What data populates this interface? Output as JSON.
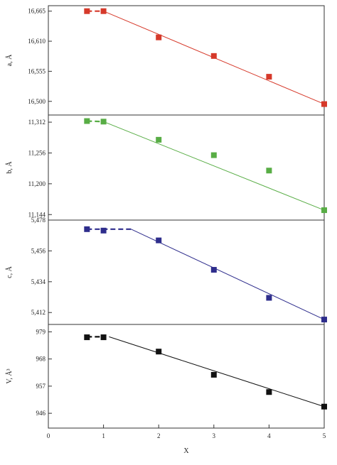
{
  "chart_data": {
    "type": "line",
    "xlabel": "X",
    "xlim": [
      0,
      5
    ],
    "x_ticks": [
      0,
      1,
      2,
      3,
      4,
      5
    ],
    "x_tick_labels": [
      "0",
      "1",
      "2",
      "3",
      "4",
      "5"
    ],
    "grid": false,
    "legend": "none",
    "panels": [
      {
        "ylabel": "a, Å",
        "color": "#d6392a",
        "ylim": [
          16.475,
          16.675
        ],
        "y_ticks": [
          16.5,
          16.555,
          16.61,
          16.665
        ],
        "y_tick_labels": [
          "16,500",
          "16,555",
          "16,610",
          "16,665"
        ],
        "x": [
          0.7,
          1,
          2,
          3,
          4,
          5
        ],
        "y": [
          16.665,
          16.665,
          16.617,
          16.583,
          16.545,
          16.495
        ],
        "fit_line": {
          "from": [
            1,
            16.665
          ],
          "to": [
            5,
            16.495
          ]
        },
        "dashed_segment": {
          "from": [
            0.7,
            16.665
          ],
          "to": [
            1,
            16.665
          ]
        }
      },
      {
        "ylabel": "b, Å",
        "color": "#58ad45",
        "ylim": [
          11.134,
          11.325
        ],
        "y_ticks": [
          11.144,
          11.2,
          11.256,
          11.312
        ],
        "y_tick_labels": [
          "11,144",
          "11,200",
          "11,256",
          "11,312"
        ],
        "x": [
          0.7,
          1,
          2,
          3,
          4,
          5
        ],
        "y": [
          11.314,
          11.313,
          11.28,
          11.252,
          11.224,
          11.152
        ],
        "fit_line": {
          "from": [
            1,
            11.313
          ],
          "to": [
            5,
            11.152
          ]
        },
        "dashed_segment": {
          "from": [
            0.7,
            11.314
          ],
          "to": [
            1,
            11.313
          ]
        }
      },
      {
        "ylabel": "c, Å",
        "color": "#2e2d8c",
        "ylim": [
          5.4035,
          5.478
        ],
        "y_ticks": [
          5.412,
          5.434,
          5.456,
          5.478
        ],
        "y_tick_labels": [
          "5,412",
          "5,434",
          "5,456",
          "5,478"
        ],
        "x": [
          0.7,
          1,
          2,
          3,
          4,
          5
        ],
        "y": [
          5.4715,
          5.4705,
          5.4635,
          5.4425,
          5.4225,
          5.407
        ],
        "fit_line": {
          "from": [
            1.5,
            5.4715
          ],
          "to": [
            5,
            5.407
          ]
        },
        "dashed_segment": {
          "from": [
            0.7,
            5.4715
          ],
          "to": [
            1.5,
            5.4715
          ]
        }
      },
      {
        "ylabel": "V, Å³",
        "color": "#111111",
        "ylim": [
          940,
          982
        ],
        "y_ticks": [
          946,
          957,
          968,
          979
        ],
        "y_tick_labels": [
          "946",
          "957",
          "968",
          "979"
        ],
        "x": [
          0.7,
          1,
          2,
          3,
          4,
          5
        ],
        "y": [
          976.8,
          976.8,
          971,
          961.6,
          954.6,
          948.7
        ],
        "fit_line": {
          "from": [
            1.1,
            977
          ],
          "to": [
            5,
            948.7
          ]
        },
        "dashed_segment": {
          "from": [
            0.7,
            977
          ],
          "to": [
            1,
            977
          ]
        }
      }
    ]
  }
}
